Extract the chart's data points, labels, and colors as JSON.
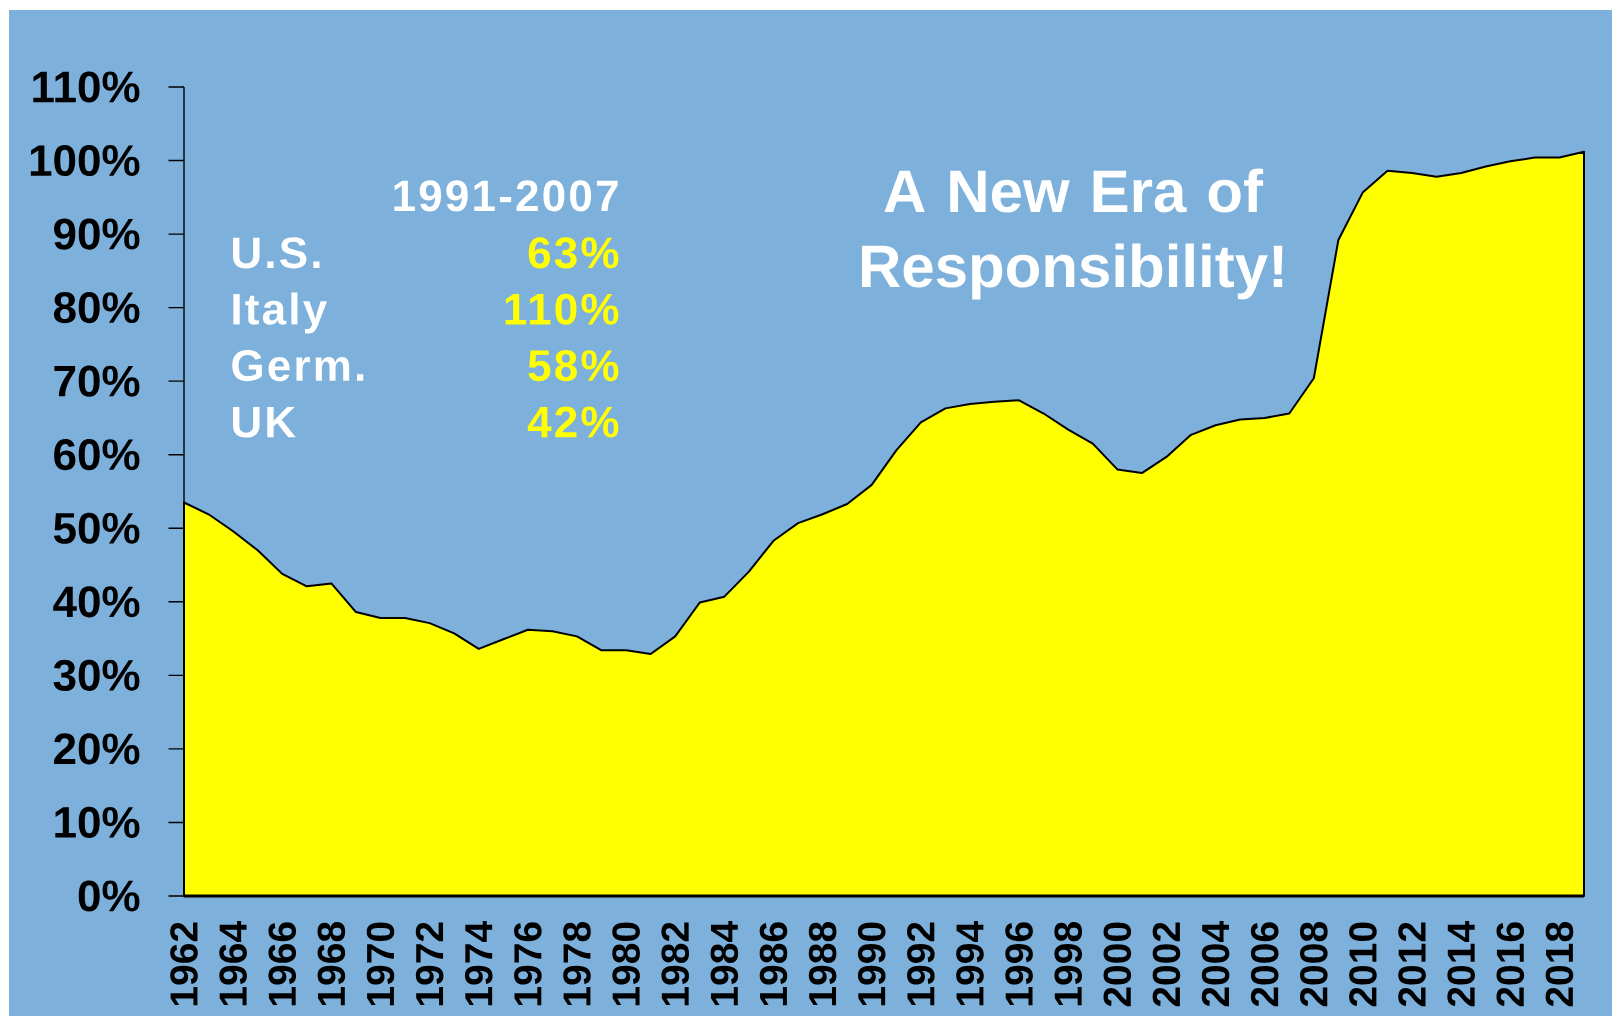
{
  "chart_data": {
    "type": "area",
    "title": "A New Era of Responsibility!",
    "annotations": [
      "1991-2007",
      "U.S.",
      "63%",
      "Italy",
      "110%",
      "Germ.",
      "58%",
      "UK",
      "42%"
    ],
    "x": [
      1962,
      1963,
      1964,
      1965,
      1966,
      1967,
      1968,
      1969,
      1970,
      1971,
      1972,
      1973,
      1974,
      1975,
      1976,
      1977,
      1978,
      1979,
      1980,
      1981,
      1982,
      1983,
      1984,
      1985,
      1986,
      1987,
      1988,
      1989,
      1990,
      1991,
      1992,
      1993,
      1994,
      1995,
      1996,
      1997,
      1998,
      1999,
      2000,
      2001,
      2002,
      2003,
      2004,
      2005,
      2006,
      2007,
      2008,
      2009,
      2010,
      2011,
      2012,
      2013,
      2014,
      2015,
      2016,
      2017,
      2018,
      2019
    ],
    "values": [
      53.5,
      51.9,
      49.6,
      47.0,
      43.8,
      42.1,
      42.5,
      38.6,
      37.8,
      37.8,
      37.1,
      35.7,
      33.6,
      34.9,
      36.2,
      36.0,
      35.3,
      33.4,
      33.4,
      32.9,
      35.3,
      39.9,
      40.7,
      44.1,
      48.3,
      50.7,
      51.9,
      53.3,
      55.9,
      60.6,
      64.4,
      66.3,
      66.9,
      67.2,
      67.4,
      65.6,
      63.4,
      61.5,
      58.0,
      57.5,
      59.7,
      62.7,
      64.0,
      64.8,
      65.0,
      65.6,
      70.4,
      89.2,
      95.7,
      98.6,
      98.3,
      97.8,
      98.3,
      99.2,
      99.9,
      100.4,
      100.4,
      101.2
    ],
    "color": "#ffff00",
    "xlim": [
      1962,
      2019
    ],
    "ylim": [
      0,
      110
    ],
    "xticks": [
      1962,
      1964,
      1966,
      1968,
      1970,
      1972,
      1974,
      1976,
      1978,
      1980,
      1982,
      1984,
      1986,
      1988,
      1990,
      1992,
      1994,
      1996,
      1998,
      2000,
      2002,
      2004,
      2006,
      2008,
      2010,
      2012,
      2014,
      2016,
      2018
    ],
    "yticks": [
      {
        "value": 0,
        "label": "0%"
      },
      {
        "value": 10,
        "label": "10%"
      },
      {
        "value": 20,
        "label": "20%"
      },
      {
        "value": 30,
        "label": "30%"
      },
      {
        "value": 40,
        "label": "40%"
      },
      {
        "value": 50,
        "label": "50%"
      },
      {
        "value": 60,
        "label": "60%"
      },
      {
        "value": 70,
        "label": "70%"
      },
      {
        "value": 80,
        "label": "80%"
      },
      {
        "value": 90,
        "label": "90%"
      },
      {
        "value": 100,
        "label": "100%"
      },
      {
        "value": 110,
        "label": "110%"
      }
    ]
  }
}
